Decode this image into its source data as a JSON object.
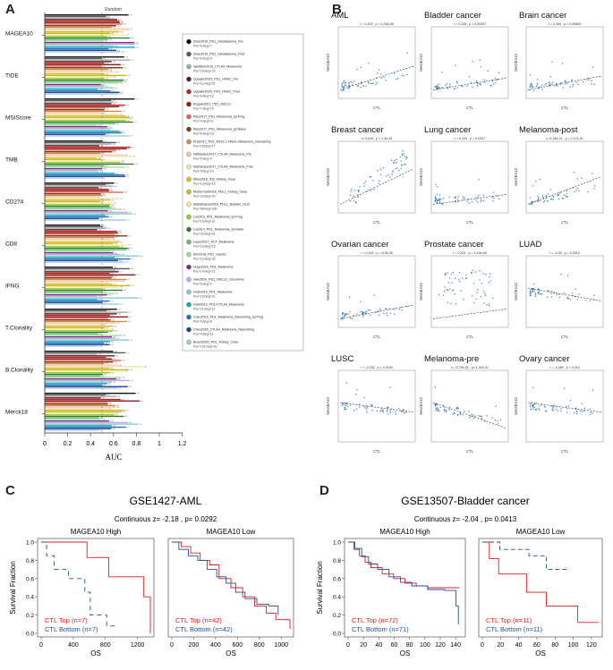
{
  "panels": {
    "A": "A",
    "B": "B",
    "C": "C",
    "D": "D"
  },
  "panel_a": {
    "random_label": "Random",
    "xlabel": "AUC",
    "xticks": [
      "0",
      "0.2",
      "0.4",
      "0.6",
      "0.8",
      "1",
      "1.2"
    ],
    "biomarkers": [
      "MAGEA10",
      "TIDE",
      "MSIScore",
      "TMB",
      "CD274",
      "CD8",
      "IFNG",
      "T.Clonality",
      "B.Clonality",
      "Merck18"
    ],
    "legend": [
      {
        "name": "Zhao2019_PD1_Glioblastoma_Pre",
        "n": "Pos=6,Neg=7",
        "color": "#111111"
      },
      {
        "name": "Zhao2019_PD1_Glioblastoma_Post",
        "n": "Pos=6,Neg=9",
        "color": "#5a5a5a"
      },
      {
        "name": "VanAllen2015_CTLA4_Melanoma",
        "n": "Pos=19,Neg=23",
        "color": "#a6a6a6"
      },
      {
        "name": "Uppaluri2020_PD1_HNSC_Pre",
        "n": "Pos=11,Neg=15",
        "color": "#4d1f1f"
      },
      {
        "name": "Uppaluri2020_PD1_HNSC_Post",
        "n": "Pos=8,Neg=13",
        "color": "#c41e1e"
      },
      {
        "name": "Ruppin2021_PD1_NSCLC",
        "n": "Pos=7,Neg=15",
        "color": "#8b1a1a"
      },
      {
        "name": "Riaz2017_PD1_Melanoma_Ipi.Prog",
        "n": "Pos=4,Neg=22",
        "color": "#e06060"
      },
      {
        "name": "Riaz2017_PD1_Melanoma_Ipi.Naive",
        "n": "Pos=6,Neg=23",
        "color": "#7a3b10"
      },
      {
        "name": "Prat2017_PD1_NSCLC-HNSC-Melanoma_Nanostring",
        "n": "Pos=15,Neg=17",
        "color": "#d28a4a"
      },
      {
        "name": "Nathanson2017_CTLA4_Melanoma_Pre",
        "n": "Pos=5,Neg=4",
        "color": "#f0c9a8"
      },
      {
        "name": "Nathanson2017_CTLA4_Melanoma_Post",
        "n": "Pos=5,Neg=10",
        "color": "#f4e0b0"
      },
      {
        "name": "Miao2018_ICB_Kidney_Clear",
        "n": "Pos=13,Neg=15",
        "color": "#e3b62b"
      },
      {
        "name": "McDermott2018_PDL1_Kidney_Clear",
        "n": "Pos=22,Neg=43",
        "color": "#bcbd22"
      },
      {
        "name": "Mariathasan2018_PDL1_Bladder_mUC",
        "n": "Pos=68,Neg=230",
        "color": "#f4ea8c"
      },
      {
        "name": "Liu2019_PD1_Melanoma_Ipi.Prog",
        "n": "Pos=16,Neg=31",
        "color": "#8fc93a"
      },
      {
        "name": "Liu2019_PD1_Melanoma_Ipi.Naive",
        "n": "Pos=33,Neg=41",
        "color": "#2e7d32"
      },
      {
        "name": "Lauss2017_ACT_Melanoma",
        "n": "Pos=10,Neg=15",
        "color": "#66bb6a"
      },
      {
        "name": "Kim2018_PD1_Gastric",
        "n": "Pos=12,Neg=33",
        "color": "#a5d6a7"
      },
      {
        "name": "Hugo2016_PD1_Melanoma",
        "n": "Pos=14,Neg=12",
        "color": "#7b2d8e"
      },
      {
        "name": "Hwu2020_PD1_NSCLC_Oncomine",
        "n": "Pos=6,Neg=2",
        "color": "#c9a9e0"
      },
      {
        "name": "Gide2019_PD1_Melanoma",
        "n": "Pos=19,Neg=22",
        "color": "#80cbc4"
      },
      {
        "name": "Gide2019_PD1+CTLA4_Melanoma",
        "n": "Pos=21,Neg=11",
        "color": "#00acc1"
      },
      {
        "name": "Chen2016_PD1_Melanoma_Nanostring_Ipi.Prog",
        "n": "Pos=5,Neg=8",
        "color": "#2a6fb5"
      },
      {
        "name": "Chen2016_CTLA4_Melanoma_Nanostring",
        "n": "Pos=4,Neg=11",
        "color": "#1c3f94"
      },
      {
        "name": "Braun2020_PD1_Kidney_Clear",
        "n": "Pos=231,Neg=91",
        "color": "#9ecae1"
      }
    ]
  },
  "panel_b": {
    "ylabel": "MAGEA10",
    "xlabel": "CTL",
    "plots": [
      {
        "title": "AML",
        "stat": "r = 0.429 , p = 1.04e-05"
      },
      {
        "title": "Bladder cancer",
        "stat": "r = 0.228 , p = 0.00307"
      },
      {
        "title": "Brain cancer",
        "stat": "r = 0.306 , p = 0.00863"
      },
      {
        "title": "Breast cancer",
        "stat": "r= 0.616 , p = 1.3e-39"
      },
      {
        "title": "Lung cancer",
        "stat": "r = 0.229 , p = 0.0307"
      },
      {
        "title": "Melanoma-post",
        "stat": "r= 6.18e-01 , p = 2.17e-01"
      },
      {
        "title": "Ovarian cancer",
        "stat": "r = 0.319 , p = 6.9e-05"
      },
      {
        "title": "Prostate cancer",
        "stat": "r = 0.201 , p = 5.43e-09"
      },
      {
        "title": "LUAD",
        "stat": "r = -0.33 , p = 0.0013"
      },
      {
        "title": "LUSC",
        "stat": "r = -0.233 , p = 0.0159"
      },
      {
        "title": "Melanoma-pre",
        "stat": "r= -5.79e-01 , p= 1.02e-01"
      },
      {
        "title": "Ovary cancer",
        "stat": "r = -0.289 , p = 0.012"
      }
    ]
  },
  "panel_c": {
    "title": "GSE1427-AML",
    "stat": "Continuous  z= -2.18 , p= 0.0292",
    "ylabel": "Survival Fraction",
    "xlabel": "OS",
    "left": {
      "title": "MAGEA10 High",
      "top": "CTL Top (n=7)",
      "bottom": "CTL Bottom (n=7)",
      "xticks": [
        "0",
        "400",
        "800",
        "1200"
      ],
      "yticks": [
        "0.0",
        "0.2",
        "0.4",
        "0.6",
        "0.8",
        "1.0"
      ]
    },
    "right": {
      "title": "MAGEA10 Low",
      "top": "CTL Top (n=42)",
      "bottom": "CTL Bottom (n=42)",
      "xticks": [
        "0",
        "200",
        "400",
        "600",
        "800",
        "1000"
      ]
    }
  },
  "panel_d": {
    "title": "GSE13507-Bladder cancer",
    "stat": "Continuous  z= -2.04 , p= 0.0413",
    "ylabel": "Survival Fraction",
    "xlabel": "OS",
    "left": {
      "title": "MAGEA10 High",
      "top": "CTL Top (n=72)",
      "bottom": "CTL Bottom (n=71)",
      "xticks": [
        "0",
        "20",
        "40",
        "60",
        "80",
        "100",
        "120",
        "140"
      ],
      "yticks": [
        "0.0",
        "0.2",
        "0.4",
        "0.6",
        "0.8",
        "1.0"
      ]
    },
    "right": {
      "title": "MAGEA10 Low",
      "top": "CTL Top (n=11)",
      "bottom": "CTL Bottom (n=11)",
      "xticks": [
        "0",
        "20",
        "40",
        "60",
        "80",
        "100",
        "120"
      ]
    }
  },
  "colors": {
    "top": "#e41a1c",
    "bottom": "#1f4e9e"
  }
}
